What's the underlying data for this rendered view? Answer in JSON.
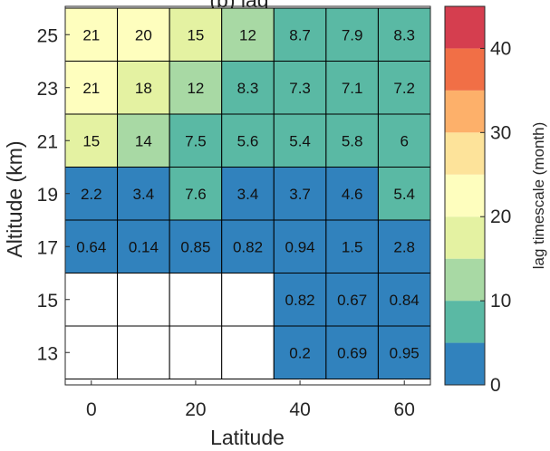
{
  "chart_data": {
    "type": "heatmap",
    "title": "(b) lag",
    "xlabel": "Latitude",
    "ylabel": "Altitude (km)",
    "x_tick_labels": [
      "0",
      "20",
      "40",
      "60"
    ],
    "y_tick_labels": [
      "25",
      "23",
      "21",
      "19",
      "17",
      "15",
      "13"
    ],
    "columns": [
      0,
      10,
      20,
      30,
      40,
      50,
      60
    ],
    "rows": [
      25,
      23,
      21,
      19,
      17,
      15,
      13
    ],
    "xlim": [
      -5,
      65
    ],
    "values": [
      [
        21,
        20,
        15,
        12,
        8.7,
        7.9,
        8.3
      ],
      [
        21,
        18,
        12,
        8.3,
        7.3,
        7.1,
        7.2
      ],
      [
        15,
        14,
        7.5,
        5.6,
        5.4,
        5.8,
        6
      ],
      [
        2.2,
        3.4,
        7.6,
        3.4,
        3.7,
        4.6,
        5.4
      ],
      [
        0.64,
        0.14,
        0.85,
        0.82,
        0.94,
        1.5,
        2.8
      ],
      [
        null,
        null,
        null,
        null,
        0.82,
        0.67,
        0.84
      ],
      [
        null,
        null,
        null,
        null,
        0.2,
        0.69,
        0.95
      ]
    ],
    "labels": [
      [
        "21",
        "20",
        "15",
        "12",
        "8.7",
        "7.9",
        "8.3"
      ],
      [
        "21",
        "18",
        "12",
        "8.3",
        "7.3",
        "7.1",
        "7.2"
      ],
      [
        "15",
        "14",
        "7.5",
        "5.6",
        "5.4",
        "5.8",
        "6"
      ],
      [
        "2.2",
        "3.4",
        "7.6",
        "3.4",
        "3.7",
        "4.6",
        "5.4"
      ],
      [
        "0.64",
        "0.14",
        "0.85",
        "0.82",
        "0.94",
        "1.5",
        "2.8"
      ],
      [
        "",
        "",
        "",
        "",
        "0.82",
        "0.67",
        "0.84"
      ],
      [
        "",
        "",
        "",
        "",
        "0.2",
        "0.69",
        "0.95"
      ]
    ],
    "colorbar": {
      "label": "lag timescale (month)",
      "min": 0,
      "max": 45,
      "step": 5,
      "tick_values": [
        0,
        10,
        20,
        30,
        40
      ],
      "tick_labels": [
        "0",
        "10",
        "20",
        "30",
        "40"
      ],
      "colors": [
        "#3182bd",
        "#5ab9a4",
        "#a8d9a4",
        "#e4f2a2",
        "#fefebe",
        "#fde39a",
        "#fdb06a",
        "#f16f46",
        "#d53e4f"
      ]
    },
    "empty_color": "#ffffff",
    "grid_color": "#000000"
  }
}
